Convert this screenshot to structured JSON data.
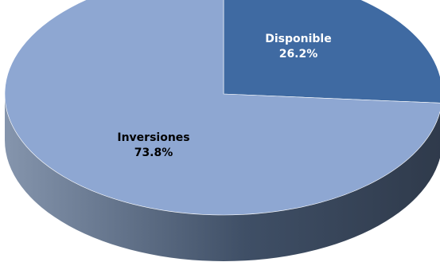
{
  "chart_data": {
    "type": "pie",
    "title": "",
    "slices": [
      {
        "name": "Disponible",
        "percent_label": "26.2%",
        "value": 26.2,
        "color": "#3f6aa2",
        "label_color": "#ffffff"
      },
      {
        "name": "Inversiones",
        "percent_label": "73.8%",
        "value": 73.8,
        "color": "#8ea7d2",
        "label_color": "#000000"
      }
    ],
    "style": "3d-tilted",
    "side_color_dark": "#3f4f66",
    "side_color_light": "#8595ad"
  }
}
